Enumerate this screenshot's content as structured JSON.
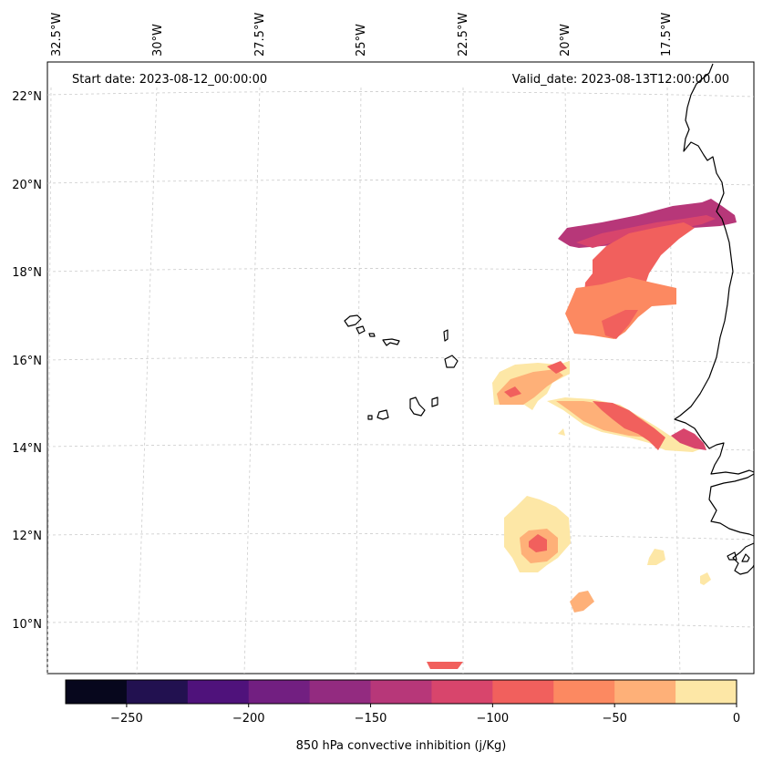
{
  "map": {
    "start_date": "Start date: 2023-08-12_00:00:00",
    "valid_date": "Valid_date: 2023-08-13T12:00:00.00",
    "lon_labels": [
      "32.5°W",
      "30°W",
      "27.5°W",
      "25°W",
      "22.5°W",
      "20°W",
      "17.5°W"
    ],
    "lat_labels": [
      "22°N",
      "20°N",
      "18°N",
      "16°N",
      "14°N",
      "12°N",
      "10°N"
    ]
  },
  "colorbar": {
    "label": "850 hPa convective inhibition (j/Kg)",
    "ticks": [
      "−250",
      "−200",
      "−150",
      "−100",
      "−50",
      "0"
    ],
    "colors": [
      "#07071d",
      "#221150",
      "#4f127b",
      "#721f81",
      "#932b80",
      "#b73779",
      "#d8456c",
      "#f1605d",
      "#fc8961",
      "#feb078",
      "#fde7a6"
    ]
  },
  "colors": {
    "coast": "#000000",
    "grid": "#cccccc"
  }
}
